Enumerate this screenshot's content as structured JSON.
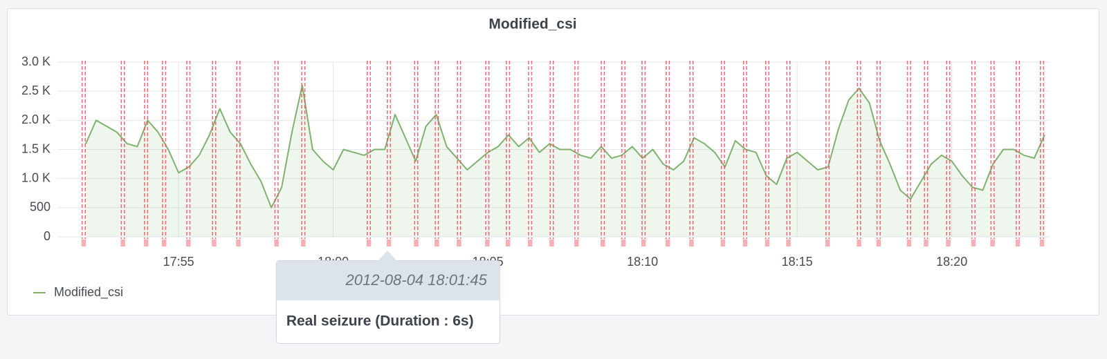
{
  "chart_data": {
    "type": "line",
    "title": "Modified_csi",
    "x": [
      "17:52:00",
      "17:52:20",
      "17:52:40",
      "17:53:00",
      "17:53:20",
      "17:53:40",
      "17:54:00",
      "17:54:20",
      "17:54:40",
      "17:55:00",
      "17:55:20",
      "17:55:40",
      "17:56:00",
      "17:56:20",
      "17:56:40",
      "17:57:00",
      "17:57:20",
      "17:57:40",
      "17:58:00",
      "17:58:20",
      "17:58:40",
      "17:59:00",
      "17:59:20",
      "17:59:40",
      "18:00:00",
      "18:00:20",
      "18:00:40",
      "18:01:00",
      "18:01:20",
      "18:01:40",
      "18:02:00",
      "18:02:20",
      "18:02:40",
      "18:03:00",
      "18:03:20",
      "18:03:40",
      "18:04:00",
      "18:04:20",
      "18:04:40",
      "18:05:00",
      "18:05:20",
      "18:05:40",
      "18:06:00",
      "18:06:20",
      "18:06:40",
      "18:07:00",
      "18:07:20",
      "18:07:40",
      "18:08:00",
      "18:08:20",
      "18:08:40",
      "18:09:00",
      "18:09:20",
      "18:09:40",
      "18:10:00",
      "18:10:20",
      "18:10:40",
      "18:11:00",
      "18:11:20",
      "18:11:40",
      "18:12:00",
      "18:12:20",
      "18:12:40",
      "18:13:00",
      "18:13:20",
      "18:13:40",
      "18:14:00",
      "18:14:20",
      "18:14:40",
      "18:15:00",
      "18:15:20",
      "18:15:40",
      "18:16:00",
      "18:16:20",
      "18:16:40",
      "18:17:00",
      "18:17:20",
      "18:17:40",
      "18:18:00",
      "18:18:20",
      "18:18:40",
      "18:19:00",
      "18:19:20",
      "18:19:40",
      "18:20:00",
      "18:20:20",
      "18:20:40",
      "18:21:00",
      "18:21:20",
      "18:21:40",
      "18:22:00",
      "18:22:20",
      "18:22:40",
      "18:23:00"
    ],
    "series": [
      {
        "name": "Modified_csi",
        "color": "#7eb26d",
        "values": [
          1600,
          2000,
          1900,
          1800,
          1600,
          1550,
          2000,
          1800,
          1500,
          1100,
          1200,
          1400,
          1750,
          2200,
          1800,
          1600,
          1250,
          950,
          500,
          850,
          1800,
          2600,
          1500,
          1300,
          1150,
          1500,
          1450,
          1400,
          1500,
          1500,
          2100,
          1700,
          1300,
          1900,
          2100,
          1550,
          1350,
          1150,
          1300,
          1450,
          1550,
          1750,
          1550,
          1700,
          1450,
          1600,
          1500,
          1500,
          1400,
          1350,
          1550,
          1350,
          1400,
          1550,
          1350,
          1500,
          1250,
          1150,
          1300,
          1700,
          1600,
          1450,
          1200,
          1650,
          1500,
          1450,
          1050,
          900,
          1350,
          1450,
          1300,
          1150,
          1200,
          1850,
          2350,
          2550,
          2300,
          1650,
          1250,
          800,
          650,
          950,
          1250,
          1400,
          1300,
          1050,
          850,
          800,
          1250,
          1500,
          1500,
          1400,
          1350,
          1750
        ]
      }
    ],
    "xlim": [
      "17:51:05",
      "18:23:11"
    ],
    "xticks": [
      "17:55",
      "18:00",
      "18:05",
      "18:10",
      "18:15",
      "18:20"
    ],
    "ylim": [
      0,
      3000
    ],
    "yticks": [
      0,
      500,
      {
        "value": 1000,
        "label": "1.0 K"
      },
      {
        "value": 1500,
        "label": "1.5 K"
      },
      {
        "value": 2000,
        "label": "2.0 K"
      },
      {
        "value": 2500,
        "label": "2.5 K"
      },
      {
        "value": 3000,
        "label": "3.0 K"
      }
    ],
    "grid": true,
    "legend": "bottom-left",
    "annotation_color": "#f2495c",
    "annotations": {
      "starts": [
        "17:51:53",
        "17:53:09",
        "17:53:54",
        "17:54:29",
        "17:55:16",
        "17:56:06",
        "17:56:53",
        "17:58:07",
        "17:58:59",
        "18:01:06",
        "18:01:45",
        "18:02:38",
        "18:03:18",
        "18:04:01",
        "18:04:56",
        "18:05:36",
        "18:06:19",
        "18:07:01",
        "18:07:49",
        "18:08:40",
        "18:09:20",
        "18:09:59",
        "18:10:46",
        "18:11:32",
        "18:12:33",
        "18:13:16",
        "18:13:59",
        "18:14:40",
        "18:15:56",
        "18:16:57",
        "18:17:35",
        "18:18:34",
        "18:19:07",
        "18:19:50",
        "18:20:39",
        "18:21:16",
        "18:22:05",
        "18:22:52"
      ],
      "ends": [
        "17:51:59",
        "17:53:15",
        "17:54:00",
        "17:54:35",
        "17:55:22",
        "17:56:12",
        "17:56:59",
        "17:58:13",
        "17:59:05",
        "18:01:12",
        "18:01:51",
        "18:02:44",
        "18:03:24",
        "18:04:07",
        "18:05:02",
        "18:05:42",
        "18:06:25",
        "18:07:07",
        "18:07:55",
        "18:08:46",
        "18:09:26",
        "18:10:05",
        "18:10:52",
        "18:11:38",
        "18:12:39",
        "18:13:22",
        "18:14:05",
        "18:14:46",
        "18:16:02",
        "18:17:03",
        "18:17:41",
        "18:18:40",
        "18:19:13",
        "18:19:56",
        "18:20:45",
        "18:21:22",
        "18:22:11",
        "18:22:58"
      ]
    },
    "tooltip": {
      "time": "2012-08-04 18:01:45",
      "text": "Real seizure (Duration : 6s)"
    }
  }
}
